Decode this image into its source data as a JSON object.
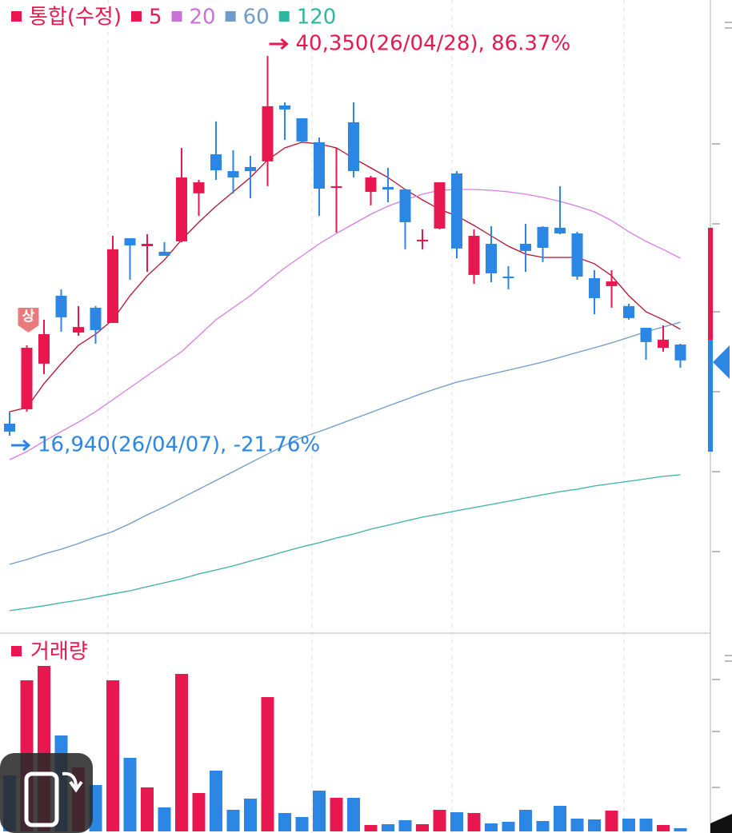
{
  "chart_data": [
    {
      "type": "candlestick",
      "legend_label": "통합(수정)",
      "badge": "상",
      "up_color": "#e8174f",
      "down_color": "#2b87e3",
      "open": [
        17680,
        18570,
        21380,
        25570,
        23300,
        24830,
        23890,
        29110,
        28620,
        28280,
        28920,
        31880,
        34290,
        33250,
        33500,
        33850,
        37300,
        36510,
        35030,
        32220,
        36260,
        31970,
        32270,
        32120,
        28920,
        29710,
        33110,
        26850,
        28770,
        26750,
        28770,
        29810,
        29760,
        29410,
        26650,
        26160,
        24930,
        23590,
        22360,
        22560
      ],
      "high": [
        18420,
        22510,
        24090,
        25960,
        24930,
        24930,
        29260,
        29110,
        29360,
        28870,
        34680,
        32710,
        36310,
        34540,
        34190,
        40350,
        37490,
        36510,
        35320,
        34680,
        37490,
        32960,
        33450,
        32170,
        29660,
        32560,
        33250,
        29660,
        29850,
        27390,
        30000,
        29850,
        32320,
        29510,
        27140,
        27140,
        25070,
        23590,
        23740,
        22610
      ],
      "low": [
        16940,
        18420,
        20740,
        23350,
        23100,
        22610,
        23890,
        26550,
        27040,
        28030,
        28870,
        30490,
        32710,
        31880,
        31580,
        32320,
        35180,
        35030,
        30490,
        29460,
        32860,
        31140,
        31330,
        28430,
        28430,
        29660,
        27880,
        26300,
        26400,
        25960,
        27040,
        27640,
        29360,
        26550,
        24430,
        24830,
        24090,
        21620,
        22120,
        21130
      ],
      "close": [
        17190,
        22360,
        23200,
        24240,
        23640,
        23450,
        28430,
        28670,
        28770,
        28030,
        32860,
        32560,
        33300,
        32860,
        33250,
        37250,
        37050,
        35080,
        32170,
        32320,
        33250,
        32860,
        32120,
        30100,
        29020,
        32560,
        28480,
        29260,
        26950,
        26650,
        28330,
        28520,
        29410,
        26750,
        25420,
        26450,
        24190,
        22710,
        22860,
        21580
      ],
      "lines": [
        {
          "name": "5",
          "color": "#b3122e",
          "legend_color": "#e8174f",
          "values": [
            18420,
            18670,
            20150,
            21380,
            22510,
            23200,
            24090,
            25570,
            26800,
            27780,
            29020,
            30100,
            31090,
            31970,
            32860,
            33940,
            34680,
            35030,
            34930,
            34680,
            34040,
            33450,
            32860,
            32120,
            31480,
            30890,
            30490,
            29900,
            29260,
            28620,
            28130,
            27930,
            27930,
            27930,
            27540,
            26800,
            25570,
            24580,
            24090,
            23500
          ]
        },
        {
          "name": "20",
          "color": "#d77ee0",
          "legend_color": "#c773d6",
          "values": [
            15460,
            15960,
            16600,
            17190,
            17780,
            18420,
            19160,
            19900,
            20640,
            21380,
            22120,
            23100,
            24090,
            24830,
            25570,
            26450,
            27290,
            28030,
            28770,
            29410,
            30000,
            30590,
            31090,
            31480,
            31830,
            32070,
            32120,
            32120,
            32070,
            31970,
            31830,
            31630,
            31380,
            31090,
            30740,
            30200,
            29510,
            28920,
            28420,
            27880
          ]
        },
        {
          "name": "60",
          "color": "#6e9bcb",
          "legend_color": "#6e9bcb",
          "values": [
            9010,
            9300,
            9650,
            9940,
            10290,
            10680,
            11030,
            11520,
            12060,
            12560,
            13100,
            13640,
            14180,
            14720,
            15270,
            15810,
            16350,
            16840,
            17190,
            17580,
            17980,
            18370,
            18770,
            19160,
            19550,
            19900,
            20240,
            20490,
            20740,
            20980,
            21230,
            21480,
            21770,
            22070,
            22360,
            22660,
            23000,
            23350,
            23640,
            23940
          ]
        },
        {
          "name": "120",
          "color": "#3bb0a8",
          "legend_color": "#2db79f",
          "values": [
            6150,
            6300,
            6450,
            6640,
            6790,
            6990,
            7190,
            7380,
            7630,
            7870,
            8120,
            8420,
            8660,
            8910,
            9210,
            9500,
            9800,
            10090,
            10340,
            10630,
            10880,
            11180,
            11420,
            11670,
            11920,
            12110,
            12310,
            12510,
            12700,
            12900,
            13100,
            13300,
            13490,
            13640,
            13840,
            13990,
            14130,
            14280,
            14430,
            14530
          ]
        }
      ],
      "annotations": [
        {
          "value": 40350,
          "label": "40,350(26/04/28), 86.37%",
          "color": "#e8174f"
        },
        {
          "value": 16940,
          "label": "16,940(26/04/07), -21.76%",
          "color": "#2b87e3"
        }
      ]
    },
    {
      "type": "bar",
      "title": "거래량",
      "color": "#e8174f",
      "values": [
        700000,
        1890000,
        2070000,
        1200000,
        800000,
        580000,
        1890000,
        920000,
        550000,
        300000,
        1970000,
        480000,
        760000,
        270000,
        410000,
        1680000,
        230000,
        180000,
        510000,
        420000,
        420000,
        80000,
        90000,
        140000,
        90000,
        270000,
        240000,
        230000,
        100000,
        120000,
        270000,
        130000,
        320000,
        160000,
        150000,
        260000,
        160000,
        160000,
        80000,
        40000
      ]
    }
  ]
}
